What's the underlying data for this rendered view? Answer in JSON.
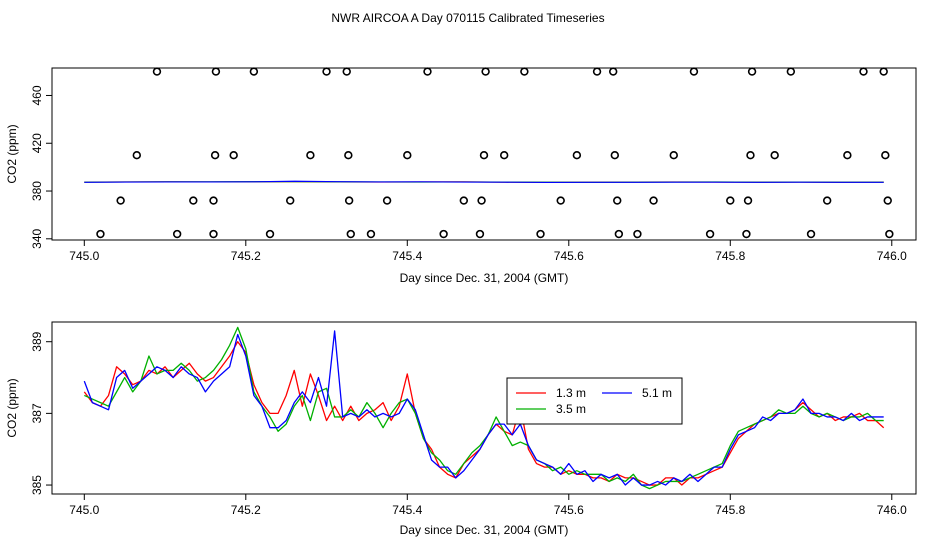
{
  "title": "NWR AIRCOA A  Day 070115  Calibrated Timeseries",
  "chart_data": [
    {
      "type": "scatter",
      "xlabel": "Day since Dec. 31, 2004 (GMT)",
      "ylabel": "CO2 (ppm)",
      "xlim": [
        744.96,
        746.03
      ],
      "ylim": [
        339,
        483
      ],
      "x_ticks": [
        {
          "value": 745.0,
          "label": "745.0"
        },
        {
          "value": 745.2,
          "label": "745.2"
        },
        {
          "value": 745.4,
          "label": "745.4"
        },
        {
          "value": 745.6,
          "label": "745.6"
        },
        {
          "value": 745.8,
          "label": "745.8"
        },
        {
          "value": 746.0,
          "label": "746.0"
        }
      ],
      "y_ticks": [
        {
          "value": 340,
          "label": "340"
        },
        {
          "value": 380,
          "label": "380"
        },
        {
          "value": 420,
          "label": "420"
        },
        {
          "value": 460,
          "label": "460"
        }
      ],
      "points": [
        [
          745.02,
          344
        ],
        [
          745.045,
          372
        ],
        [
          745.065,
          410
        ],
        [
          745.09,
          480
        ],
        [
          745.115,
          344
        ],
        [
          745.135,
          372
        ],
        [
          745.16,
          344
        ],
        [
          745.16,
          372
        ],
        [
          745.162,
          410
        ],
        [
          745.163,
          480
        ],
        [
          745.185,
          410
        ],
        [
          745.21,
          480
        ],
        [
          745.23,
          344
        ],
        [
          745.255,
          372
        ],
        [
          745.28,
          410
        ],
        [
          745.3,
          480
        ],
        [
          745.325,
          480
        ],
        [
          745.327,
          410
        ],
        [
          745.328,
          372
        ],
        [
          745.33,
          344
        ],
        [
          745.355,
          344
        ],
        [
          745.375,
          372
        ],
        [
          745.4,
          410
        ],
        [
          745.425,
          480
        ],
        [
          745.445,
          344
        ],
        [
          745.47,
          372
        ],
        [
          745.49,
          344
        ],
        [
          745.492,
          372
        ],
        [
          745.495,
          410
        ],
        [
          745.497,
          480
        ],
        [
          745.52,
          410
        ],
        [
          745.545,
          480
        ],
        [
          745.565,
          344
        ],
        [
          745.59,
          372
        ],
        [
          745.61,
          410
        ],
        [
          745.635,
          480
        ],
        [
          745.655,
          480
        ],
        [
          745.657,
          410
        ],
        [
          745.66,
          372
        ],
        [
          745.662,
          344
        ],
        [
          745.685,
          344
        ],
        [
          745.705,
          372
        ],
        [
          745.73,
          410
        ],
        [
          745.755,
          480
        ],
        [
          745.775,
          344
        ],
        [
          745.8,
          372
        ],
        [
          745.82,
          344
        ],
        [
          745.822,
          372
        ],
        [
          745.825,
          410
        ],
        [
          745.827,
          480
        ],
        [
          745.855,
          410
        ],
        [
          745.875,
          480
        ],
        [
          745.9,
          344
        ],
        [
          745.92,
          372
        ],
        [
          745.945,
          410
        ],
        [
          745.965,
          480
        ],
        [
          745.99,
          480
        ],
        [
          745.992,
          410
        ],
        [
          745.995,
          372
        ],
        [
          745.997,
          344
        ]
      ],
      "series": [
        {
          "name": "1.3 m",
          "color": "#ff0000",
          "values": [
            387.5,
            387.6,
            387.7,
            387.6,
            387.7,
            387.8,
            387.6,
            387.5,
            387.6,
            387.7,
            387.4,
            387.3,
            387.4,
            387.5,
            387.6,
            387.5,
            387.4,
            387.5,
            387.3,
            387.5
          ]
        },
        {
          "name": "3.5 m",
          "color": "#00b000",
          "values": [
            387.4,
            387.6,
            387.7,
            387.7,
            387.8,
            387.9,
            387.7,
            387.6,
            387.5,
            387.6,
            387.5,
            387.4,
            387.3,
            387.4,
            387.5,
            387.6,
            387.4,
            387.5,
            387.4,
            387.4
          ]
        },
        {
          "name": "5.1 m",
          "color": "#0000ff",
          "values": [
            387.3,
            387.5,
            387.6,
            387.6,
            387.7,
            388.2,
            387.8,
            387.6,
            387.7,
            387.5,
            387.4,
            387.2,
            387.3,
            387.3,
            387.4,
            387.4,
            387.3,
            387.4,
            387.3,
            387.3
          ]
        }
      ]
    },
    {
      "type": "line",
      "xlabel": "Day since Dec. 31, 2004 (GMT)",
      "ylabel": "CO2 (ppm)",
      "xlim": [
        744.96,
        746.03
      ],
      "ylim": [
        384.75,
        389.55
      ],
      "x_ticks": [
        {
          "value": 745.0,
          "label": "745.0"
        },
        {
          "value": 745.2,
          "label": "745.2"
        },
        {
          "value": 745.4,
          "label": "745.4"
        },
        {
          "value": 745.6,
          "label": "745.6"
        },
        {
          "value": 745.8,
          "label": "745.8"
        },
        {
          "value": 746.0,
          "label": "746.0"
        }
      ],
      "y_ticks": [
        {
          "value": 385,
          "label": "385"
        },
        {
          "value": 387,
          "label": "387"
        },
        {
          "value": 389,
          "label": "389"
        }
      ],
      "x": [
        745.0,
        745.01,
        745.02,
        745.03,
        745.04,
        745.05,
        745.06,
        745.07,
        745.08,
        745.09,
        745.1,
        745.11,
        745.12,
        745.13,
        745.14,
        745.15,
        745.16,
        745.17,
        745.18,
        745.19,
        745.2,
        745.21,
        745.22,
        745.23,
        745.24,
        745.25,
        745.26,
        745.27,
        745.28,
        745.29,
        745.3,
        745.31,
        745.32,
        745.33,
        745.34,
        745.35,
        745.36,
        745.37,
        745.38,
        745.39,
        745.4,
        745.41,
        745.42,
        745.43,
        745.44,
        745.45,
        745.46,
        745.47,
        745.48,
        745.49,
        745.5,
        745.51,
        745.52,
        745.53,
        745.54,
        745.55,
        745.56,
        745.57,
        745.58,
        745.59,
        745.6,
        745.61,
        745.62,
        745.63,
        745.64,
        745.65,
        745.66,
        745.67,
        745.68,
        745.69,
        745.7,
        745.71,
        745.72,
        745.73,
        745.74,
        745.75,
        745.76,
        745.77,
        745.78,
        745.79,
        745.8,
        745.81,
        745.82,
        745.83,
        745.84,
        745.85,
        745.86,
        745.87,
        745.88,
        745.89,
        745.9,
        745.91,
        745.92,
        745.93,
        745.94,
        745.95,
        745.96,
        745.97,
        745.98,
        745.99
      ],
      "series": [
        {
          "name": "1.3 m",
          "color": "#ff0000",
          "values": [
            387.6,
            387.3,
            387.2,
            387.5,
            388.3,
            388.1,
            387.8,
            387.9,
            388.2,
            388.1,
            388.3,
            388.0,
            388.2,
            388.4,
            388.1,
            387.9,
            388.0,
            388.3,
            388.6,
            389.0,
            388.7,
            387.8,
            387.3,
            387.0,
            387.0,
            387.5,
            388.2,
            387.2,
            388.1,
            387.5,
            386.8,
            387.2,
            386.8,
            387.2,
            386.8,
            387.0,
            387.1,
            387.3,
            386.8,
            387.2,
            388.1,
            387.0,
            386.3,
            386.0,
            385.5,
            385.3,
            385.2,
            385.6,
            385.8,
            386.0,
            386.4,
            386.7,
            386.5,
            386.4,
            387.2,
            386.0,
            385.6,
            385.5,
            385.5,
            385.3,
            385.4,
            385.3,
            385.3,
            385.2,
            385.2,
            385.1,
            385.3,
            385.2,
            385.2,
            385.1,
            385.0,
            385.0,
            385.2,
            385.2,
            385.0,
            385.2,
            385.2,
            385.3,
            385.4,
            385.5,
            385.9,
            386.3,
            386.5,
            386.7,
            386.8,
            386.9,
            387.0,
            387.0,
            387.1,
            387.3,
            387.1,
            386.9,
            387.0,
            386.8,
            386.9,
            386.9,
            387.0,
            386.8,
            386.8,
            386.6
          ]
        },
        {
          "name": "3.5 m",
          "color": "#00b000",
          "values": [
            387.5,
            387.4,
            387.3,
            387.2,
            387.6,
            388.0,
            387.6,
            387.9,
            388.6,
            388.1,
            388.2,
            388.2,
            388.4,
            388.2,
            387.9,
            388.0,
            388.2,
            388.5,
            388.9,
            389.4,
            388.8,
            387.6,
            387.2,
            386.9,
            386.5,
            386.7,
            387.2,
            387.5,
            386.8,
            387.6,
            387.7,
            386.9,
            386.9,
            387.1,
            386.9,
            387.3,
            387.0,
            386.6,
            387.0,
            387.3,
            387.4,
            387.0,
            386.3,
            385.9,
            385.7,
            385.4,
            385.3,
            385.6,
            385.9,
            386.1,
            386.4,
            386.9,
            386.5,
            386.1,
            386.2,
            386.1,
            385.7,
            385.6,
            385.4,
            385.5,
            385.3,
            385.4,
            385.3,
            385.3,
            385.3,
            385.1,
            385.2,
            385.1,
            385.3,
            385.0,
            384.9,
            385.0,
            385.1,
            385.1,
            385.1,
            385.2,
            385.3,
            385.4,
            385.5,
            385.6,
            386.1,
            386.5,
            386.6,
            386.7,
            386.8,
            386.9,
            387.1,
            387.0,
            387.0,
            387.2,
            387.0,
            386.9,
            387.0,
            386.9,
            386.8,
            386.9,
            386.9,
            387.0,
            386.8,
            386.8
          ]
        },
        {
          "name": "5.1 m",
          "color": "#0000ff",
          "values": [
            387.9,
            387.3,
            387.2,
            387.1,
            388.0,
            388.2,
            387.7,
            387.9,
            388.1,
            388.3,
            388.2,
            388.0,
            388.3,
            388.1,
            388.0,
            387.6,
            387.9,
            388.1,
            388.3,
            389.2,
            388.6,
            387.5,
            387.2,
            386.6,
            386.6,
            386.8,
            387.3,
            387.6,
            387.3,
            388.0,
            387.2,
            389.3,
            386.9,
            387.0,
            386.9,
            387.1,
            386.9,
            387.0,
            386.9,
            387.0,
            387.4,
            387.1,
            386.4,
            385.7,
            385.5,
            385.5,
            385.2,
            385.4,
            385.7,
            386.0,
            386.4,
            386.7,
            386.7,
            386.4,
            386.7,
            386.1,
            385.7,
            385.6,
            385.5,
            385.3,
            385.6,
            385.3,
            385.4,
            385.1,
            385.3,
            385.2,
            385.3,
            385.0,
            385.2,
            385.0,
            385.0,
            385.1,
            385.0,
            385.2,
            385.1,
            385.3,
            385.1,
            385.3,
            385.5,
            385.5,
            386.0,
            386.4,
            386.5,
            386.6,
            386.9,
            386.8,
            387.0,
            387.0,
            387.1,
            387.4,
            387.0,
            387.0,
            386.9,
            386.9,
            386.8,
            387.0,
            386.8,
            386.9,
            386.9,
            386.9
          ]
        }
      ],
      "legend": {
        "placement": "center-right",
        "entries": [
          {
            "label": "1.3 m",
            "color": "#ff0000"
          },
          {
            "label": "3.5 m",
            "color": "#00b000"
          },
          {
            "label": "5.1 m",
            "color": "#0000ff"
          }
        ]
      }
    }
  ]
}
